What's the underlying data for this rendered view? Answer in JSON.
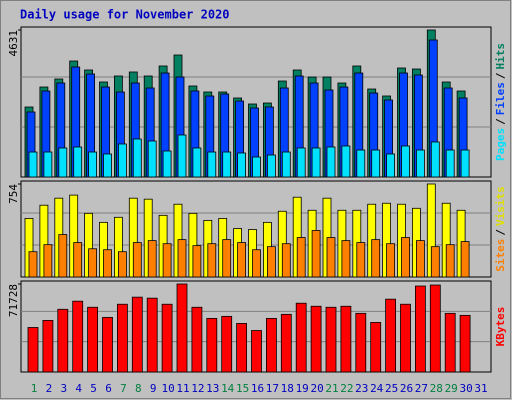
{
  "chart_data": {
    "type": "bar",
    "title": "Daily usage for November 2020",
    "categories": [
      "1",
      "2",
      "3",
      "4",
      "5",
      "6",
      "7",
      "8",
      "9",
      "10",
      "11",
      "12",
      "13",
      "14",
      "15",
      "16",
      "17",
      "18",
      "19",
      "20",
      "21",
      "22",
      "23",
      "24",
      "25",
      "26",
      "27",
      "28",
      "29",
      "30",
      "31"
    ],
    "category_colors": [
      "#008040",
      "#0000c0",
      "#0000c0",
      "#0000c0",
      "#0000c0",
      "#0000c0",
      "#008040",
      "#008040",
      "#0000c0",
      "#0000c0",
      "#0000c0",
      "#0000c0",
      "#0000c0",
      "#008040",
      "#008040",
      "#0000c0",
      "#0000c0",
      "#0000c0",
      "#0000c0",
      "#0000c0",
      "#008040",
      "#008040",
      "#0000c0",
      "#0000c0",
      "#0000c0",
      "#0000c0",
      "#0000c0",
      "#008040",
      "#008040",
      "#0000c0",
      "#0000c0"
    ],
    "legend_separator": "/",
    "panels": [
      {
        "ylim": [
          0,
          4631
        ],
        "yticks": [
          4631
        ],
        "series": [
          {
            "name": "Hits",
            "color": "#008060",
            "values": [
              2205,
              2835,
              3087,
              3654,
              3371,
              2993,
              3182,
              3308,
              3182,
              3497,
              3843,
              2867,
              2678,
              2678,
              2489,
              2300,
              2331,
              3024,
              3371,
              3150,
              3150,
              2961,
              3497,
              2772,
              2552,
              3434,
              3402,
              4631,
              2993,
              2709,
              null
            ]
          },
          {
            "name": "Files",
            "color": "#0040ff",
            "values": [
              2048,
              2709,
              2961,
              3465,
              3245,
              2835,
              2678,
              2961,
              2804,
              3276,
              3150,
              2709,
              2552,
              2615,
              2394,
              2174,
              2205,
              2804,
              3182,
              2961,
              2741,
              2835,
              3276,
              2646,
              2426,
              3276,
              3213,
              4316,
              2804,
              2489,
              null
            ]
          },
          {
            "name": "Pages",
            "color": "#00e0ff",
            "values": [
              787,
              787,
              914,
              945,
              787,
              725,
              1040,
              1197,
              1134,
              819,
              1323,
              914,
              787,
              787,
              756,
              630,
              693,
              787,
              914,
              914,
              945,
              977,
              850,
              850,
              725,
              977,
              850,
              1103,
              850,
              850,
              null
            ]
          }
        ]
      },
      {
        "ylim": [
          0,
          754
        ],
        "yticks": [
          754
        ],
        "series": [
          {
            "name": "Visits",
            "color": "#ffff00",
            "values": [
              475,
              582,
              639,
              664,
              516,
              443,
              484,
              639,
              631,
              500,
              590,
              516,
              459,
              475,
              393,
              385,
              443,
              533,
              647,
              541,
              639,
              541,
              541,
              590,
              598,
              590,
              557,
              754,
              598,
              541,
              null
            ]
          },
          {
            "name": "Sites",
            "color": "#ff8000",
            "values": [
              205,
              262,
              344,
              279,
              229,
              221,
              205,
              279,
              295,
              270,
              303,
              254,
              270,
              303,
              279,
              221,
              246,
              270,
              320,
              377,
              320,
              295,
              279,
              303,
              270,
              320,
              295,
              246,
              262,
              287,
              null
            ]
          }
        ]
      },
      {
        "ylim": [
          0,
          71728
        ],
        "yticks": [
          71728
        ],
        "series": [
          {
            "name": "KBytes",
            "color": "#ff0000",
            "values": [
              36277,
              42050,
              51118,
              57713,
              52767,
              44522,
              55240,
              61011,
              60187,
              55240,
              71728,
              52767,
              43698,
              45347,
              39575,
              33804,
              43698,
              46996,
              56064,
              53591,
              52767,
              53591,
              47820,
              40400,
              59362,
              55240,
              70079,
              70900,
              47820,
              46171,
              null
            ]
          }
        ]
      }
    ]
  }
}
